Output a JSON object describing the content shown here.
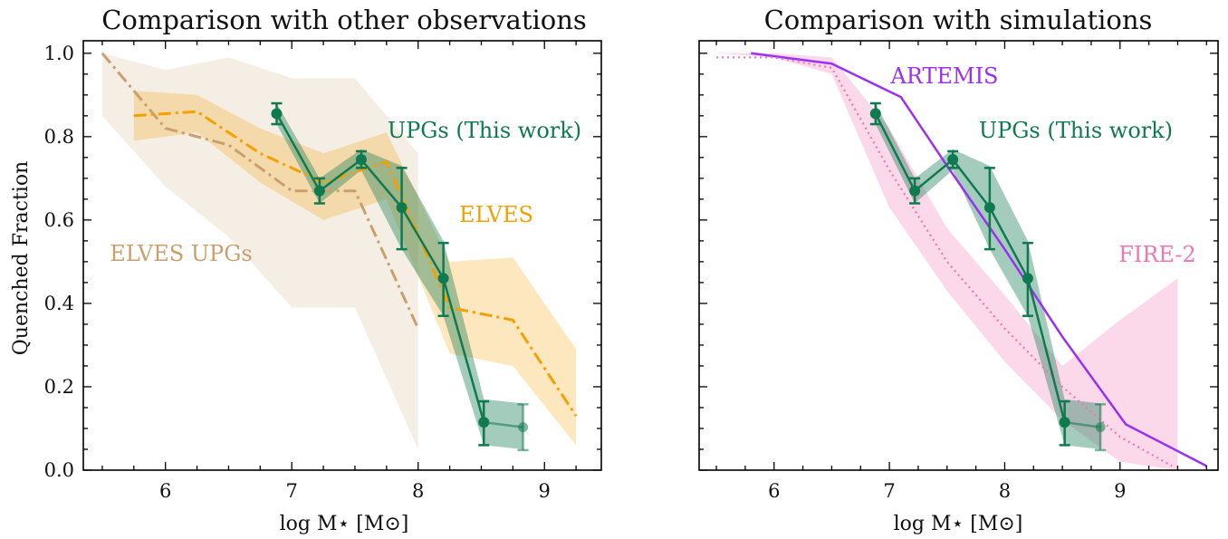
{
  "chart_data": [
    {
      "type": "line",
      "title": "Comparison with other observations",
      "xlabel": "log  M⋆ [M⊙]",
      "ylabel": "Quenched Fraction",
      "xlim": [
        5.35,
        9.45
      ],
      "ylim": [
        0.0,
        1.03
      ],
      "xticks": [
        "6",
        "7",
        "8",
        "9"
      ],
      "yticks": [
        "0.0",
        "0.2",
        "0.4",
        "0.6",
        "0.8",
        "1.0"
      ],
      "annotations": [
        {
          "text": "UPGs (This work)",
          "color": "#0f7a4f"
        },
        {
          "text": "ELVES",
          "color": "#f2a100"
        },
        {
          "text": "ELVES UPGs",
          "color": "#c8a06e"
        }
      ],
      "series": [
        {
          "name": "ELVES UPGs",
          "style": "dashdot",
          "color": "#c8a06e",
          "x": [
            5.5,
            6.0,
            6.5,
            7.0,
            7.5,
            8.0
          ],
          "y": [
            1.0,
            0.82,
            0.78,
            0.67,
            0.67,
            0.34
          ],
          "band": {
            "x": [
              5.5,
              6.0,
              6.5,
              7.0,
              7.5,
              8.0
            ],
            "lo": [
              0.85,
              0.68,
              0.56,
              0.39,
              0.39,
              0.05
            ],
            "hi": [
              1.0,
              0.96,
              0.99,
              0.94,
              0.94,
              0.76
            ]
          }
        },
        {
          "name": "ELVES",
          "style": "dashdot",
          "color": "#f2a100",
          "x": [
            5.75,
            6.25,
            6.75,
            7.25,
            7.75,
            8.25,
            8.75,
            9.25
          ],
          "y": [
            0.85,
            0.86,
            0.76,
            0.69,
            0.74,
            0.39,
            0.36,
            0.13
          ],
          "band": {
            "x": [
              5.75,
              6.25,
              6.75,
              7.25,
              7.75,
              8.25,
              8.75,
              9.25
            ],
            "lo": [
              0.79,
              0.81,
              0.69,
              0.6,
              0.65,
              0.28,
              0.25,
              0.06
            ],
            "hi": [
              0.91,
              0.9,
              0.82,
              0.76,
              0.81,
              0.5,
              0.51,
              0.29
            ]
          }
        },
        {
          "name": "UPGs (This work)",
          "style": "solid-markers",
          "color": "#0f7a4f",
          "x": [
            6.88,
            7.22,
            7.55,
            7.87,
            8.2,
            8.52
          ],
          "y": [
            0.855,
            0.67,
            0.745,
            0.63,
            0.46,
            0.115
          ],
          "yerr_lo": [
            0.025,
            0.03,
            0.02,
            0.1,
            0.09,
            0.055
          ],
          "yerr_hi": [
            0.025,
            0.03,
            0.02,
            0.095,
            0.085,
            0.05
          ],
          "faded_point": {
            "x": 8.83,
            "y": 0.103,
            "err": 0.055
          },
          "band": {
            "x": [
              6.88,
              7.22,
              7.55,
              7.87,
              8.2,
              8.52,
              8.83
            ],
            "lo": [
              0.83,
              0.64,
              0.72,
              0.53,
              0.37,
              0.06,
              0.05
            ],
            "hi": [
              0.88,
              0.7,
              0.77,
              0.73,
              0.55,
              0.17,
              0.16
            ]
          }
        }
      ]
    },
    {
      "type": "line",
      "title": "Comparison with simulations",
      "xlabel": "log  M⋆ [M⊙]",
      "ylabel": "",
      "xlim": [
        5.35,
        9.85
      ],
      "ylim": [
        0.0,
        1.03
      ],
      "xticks": [
        "6",
        "7",
        "8",
        "9"
      ],
      "annotations": [
        {
          "text": "ARTEMIS",
          "color": "#9b30f0"
        },
        {
          "text": "UPGs (This work)",
          "color": "#0f7a4f"
        },
        {
          "text": "FIRE-2",
          "color": "#f075b5"
        }
      ],
      "series": [
        {
          "name": "ARTEMIS",
          "style": "solid",
          "color": "#9b30f0",
          "x": [
            5.8,
            6.5,
            7.1,
            7.5,
            8.0,
            8.5,
            9.05,
            9.75
          ],
          "y": [
            1.0,
            0.975,
            0.895,
            0.73,
            0.53,
            0.32,
            0.11,
            0.01
          ]
        },
        {
          "name": "FIRE-2",
          "style": "dotted",
          "color": "#f075b5",
          "x": [
            5.5,
            6.0,
            6.5,
            7.0,
            7.5,
            8.0,
            8.5,
            9.0,
            9.45
          ],
          "y": [
            0.99,
            0.99,
            0.965,
            0.72,
            0.5,
            0.34,
            0.2,
            0.08,
            0.01
          ],
          "band": {
            "x": [
              5.5,
              6.0,
              6.5,
              7.0,
              7.5,
              8.0,
              8.5,
              9.0,
              9.5
            ],
            "lo": [
              1.0,
              0.99,
              0.95,
              0.63,
              0.43,
              0.26,
              0.12,
              0.02,
              0.0
            ],
            "hi": [
              1.0,
              1.0,
              0.99,
              0.82,
              0.58,
              0.42,
              0.25,
              0.36,
              0.46
            ]
          }
        },
        {
          "name": "UPGs (This work)",
          "style": "solid-markers",
          "color": "#0f7a4f",
          "x": [
            6.88,
            7.22,
            7.55,
            7.87,
            8.2,
            8.52
          ],
          "y": [
            0.855,
            0.67,
            0.745,
            0.63,
            0.46,
            0.115
          ],
          "yerr_lo": [
            0.025,
            0.03,
            0.02,
            0.1,
            0.09,
            0.055
          ],
          "yerr_hi": [
            0.025,
            0.03,
            0.02,
            0.095,
            0.085,
            0.05
          ],
          "faded_point": {
            "x": 8.83,
            "y": 0.103,
            "err": 0.055
          },
          "band": {
            "x": [
              6.88,
              7.22,
              7.55,
              7.87,
              8.2,
              8.52,
              8.83
            ],
            "lo": [
              0.83,
              0.64,
              0.72,
              0.53,
              0.37,
              0.06,
              0.05
            ],
            "hi": [
              0.88,
              0.7,
              0.77,
              0.73,
              0.55,
              0.17,
              0.16
            ]
          }
        }
      ]
    }
  ]
}
